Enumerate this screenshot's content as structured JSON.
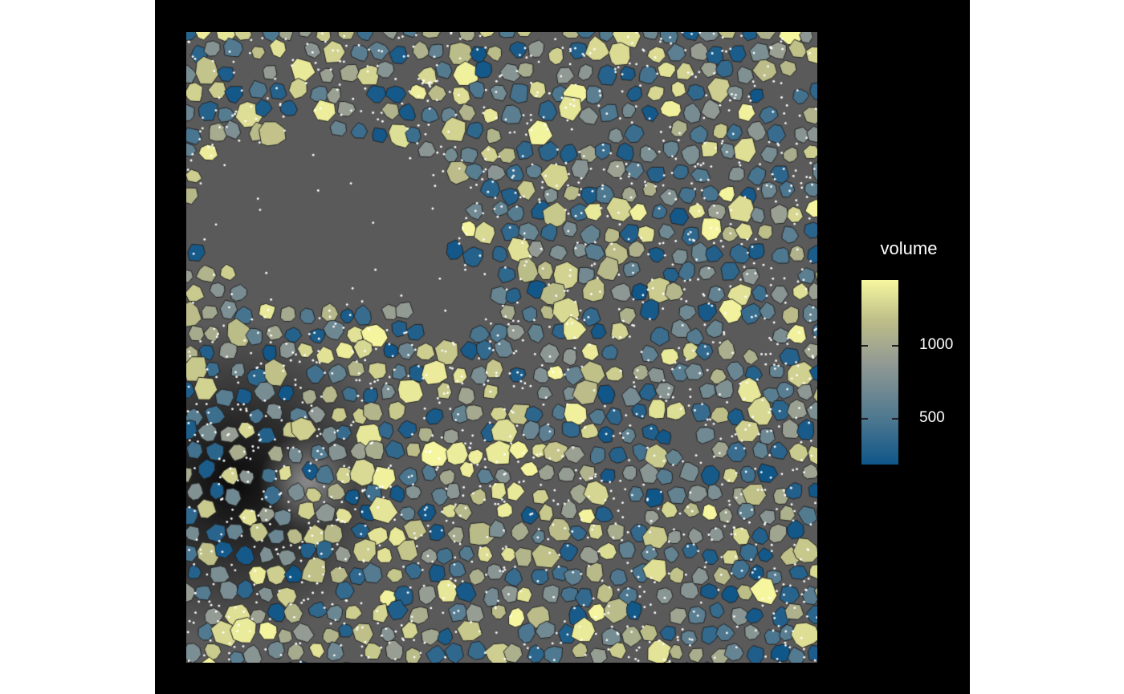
{
  "legend": {
    "title": "volume",
    "ticks": [
      {
        "value": 500,
        "label": "500"
      },
      {
        "value": 1000,
        "label": "1000"
      }
    ],
    "range": [
      180,
      1450
    ],
    "colors": {
      "low": "#0f5689",
      "mid_low": "#4e7890",
      "mid": "#929a94",
      "mid_high": "#bdbe88",
      "high": "#f7f7a0"
    }
  },
  "image": {
    "background_color": "#5a5a5a",
    "panel_color": "#000000",
    "cell_outline_color": "#222222",
    "transcript_dot_color": "#ffffff"
  }
}
